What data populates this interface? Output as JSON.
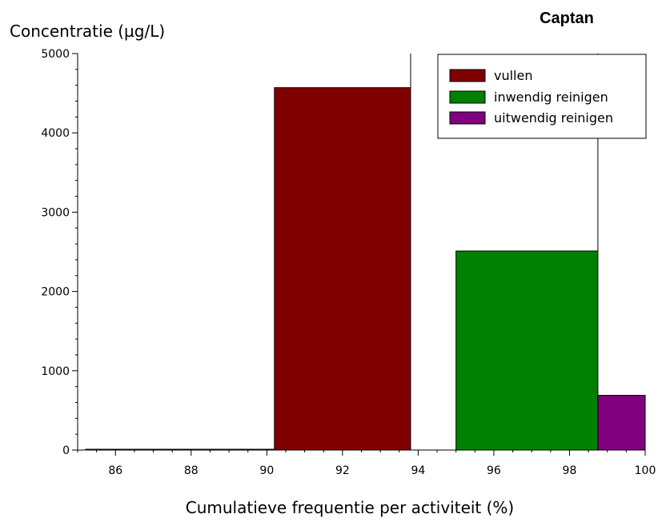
{
  "chart_data": {
    "type": "bar",
    "title": "Captan",
    "xlabel": "Cumulatieve frequentie per activiteit (%)",
    "ylabel": "Concentratie (µg/L)",
    "xlim": [
      85,
      100
    ],
    "ylim": [
      0,
      5000
    ],
    "x_ticks": [
      86,
      88,
      90,
      92,
      94,
      96,
      98,
      100
    ],
    "y_ticks": [
      0,
      1000,
      2000,
      3000,
      4000,
      5000
    ],
    "legend_position": "top-right",
    "grid": false,
    "series": [
      {
        "name": "vullen",
        "color": "#800000",
        "bars": [
          {
            "x_start": 85.2,
            "x_end": 90.2,
            "value": 0
          },
          {
            "x_start": 90.2,
            "x_end": 93.8,
            "value": 4570
          }
        ]
      },
      {
        "name": "inwendig reinigen",
        "color": "#008000",
        "bars": [
          {
            "x_start": 95.0,
            "x_end": 98.75,
            "value": 2510
          }
        ]
      },
      {
        "name": "uitwendig reinigen",
        "color": "#800080",
        "bars": [
          {
            "x_start": 98.75,
            "x_end": 100.0,
            "value": 690
          }
        ]
      }
    ],
    "reference_lines": [
      {
        "x": 93.8,
        "from": 4570,
        "to": 5000
      },
      {
        "x": 98.75,
        "from": 2510,
        "to": 5000
      }
    ]
  }
}
